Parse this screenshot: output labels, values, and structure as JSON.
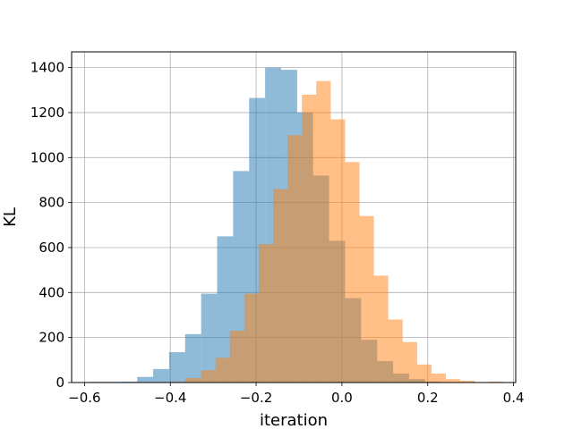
{
  "chart_data": {
    "type": "histogram",
    "title": "",
    "xlabel": "iteration",
    "ylabel": "KL",
    "xlim": [
      -0.63,
      0.405
    ],
    "ylim": [
      0,
      1470
    ],
    "xticks": [
      -0.6,
      -0.4,
      -0.2,
      0.0,
      0.2,
      0.4
    ],
    "xtick_labels": [
      "−0.6",
      "−0.4",
      "−0.2",
      "0.0",
      "0.2",
      "0.4"
    ],
    "yticks": [
      0,
      200,
      400,
      600,
      800,
      1000,
      1200,
      1400
    ],
    "ytick_labels": [
      "0",
      "200",
      "400",
      "600",
      "800",
      "1000",
      "1200",
      "1400"
    ],
    "grid": true,
    "series": [
      {
        "color": "#1f77b4",
        "alpha": 0.5,
        "bins": [
          {
            "x0": -0.5891,
            "x1": -0.5518,
            "value": 3
          },
          {
            "x0": -0.5518,
            "x1": -0.5145,
            "value": 3
          },
          {
            "x0": -0.5145,
            "x1": -0.4772,
            "value": 4
          },
          {
            "x0": -0.4772,
            "x1": -0.44,
            "value": 25
          },
          {
            "x0": -0.44,
            "x1": -0.4027,
            "value": 60
          },
          {
            "x0": -0.4027,
            "x1": -0.3654,
            "value": 135
          },
          {
            "x0": -0.3654,
            "x1": -0.3281,
            "value": 215
          },
          {
            "x0": -0.3281,
            "x1": -0.2908,
            "value": 395
          },
          {
            "x0": -0.2908,
            "x1": -0.2536,
            "value": 650
          },
          {
            "x0": -0.2536,
            "x1": -0.2163,
            "value": 940
          },
          {
            "x0": -0.2163,
            "x1": -0.179,
            "value": 1265
          },
          {
            "x0": -0.179,
            "x1": -0.1417,
            "value": 1400
          },
          {
            "x0": -0.1417,
            "x1": -0.1044,
            "value": 1390
          },
          {
            "x0": -0.1044,
            "x1": -0.0672,
            "value": 1200
          },
          {
            "x0": -0.0672,
            "x1": -0.0299,
            "value": 920
          },
          {
            "x0": -0.0299,
            "x1": 0.0074,
            "value": 630
          },
          {
            "x0": 0.0074,
            "x1": 0.0447,
            "value": 375
          },
          {
            "x0": 0.0447,
            "x1": 0.082,
            "value": 190
          },
          {
            "x0": 0.082,
            "x1": 0.1192,
            "value": 95
          },
          {
            "x0": 0.1192,
            "x1": 0.1565,
            "value": 40
          },
          {
            "x0": 0.1565,
            "x1": 0.1938,
            "value": 15
          },
          {
            "x0": 0.1938,
            "x1": 0.2311,
            "value": 4
          }
        ]
      },
      {
        "color": "#ff7f0e",
        "alpha": 0.5,
        "bins": [
          {
            "x0": -0.4027,
            "x1": -0.3654,
            "value": 3
          },
          {
            "x0": -0.3654,
            "x1": -0.3281,
            "value": 20
          },
          {
            "x0": -0.3281,
            "x1": -0.2946,
            "value": 55
          },
          {
            "x0": -0.2946,
            "x1": -0.261,
            "value": 110
          },
          {
            "x0": -0.261,
            "x1": -0.2275,
            "value": 230
          },
          {
            "x0": -0.2275,
            "x1": -0.194,
            "value": 395
          },
          {
            "x0": -0.194,
            "x1": -0.1604,
            "value": 615
          },
          {
            "x0": -0.1604,
            "x1": -0.1269,
            "value": 860
          },
          {
            "x0": -0.1269,
            "x1": -0.0933,
            "value": 1100
          },
          {
            "x0": -0.0933,
            "x1": -0.0598,
            "value": 1280
          },
          {
            "x0": -0.0598,
            "x1": -0.0262,
            "value": 1340
          },
          {
            "x0": -0.0262,
            "x1": 0.0074,
            "value": 1170
          },
          {
            "x0": 0.0074,
            "x1": 0.0409,
            "value": 980
          },
          {
            "x0": 0.0409,
            "x1": 0.0745,
            "value": 740
          },
          {
            "x0": 0.0745,
            "x1": 0.108,
            "value": 475
          },
          {
            "x0": 0.108,
            "x1": 0.1416,
            "value": 280
          },
          {
            "x0": 0.1416,
            "x1": 0.1751,
            "value": 180
          },
          {
            "x0": 0.1751,
            "x1": 0.2087,
            "value": 80
          },
          {
            "x0": 0.2087,
            "x1": 0.2422,
            "value": 40
          },
          {
            "x0": 0.2422,
            "x1": 0.2757,
            "value": 15
          },
          {
            "x0": 0.2757,
            "x1": 0.3093,
            "value": 8
          },
          {
            "x0": 0.3093,
            "x1": 0.3428,
            "value": 2
          },
          {
            "x0": 0.3428,
            "x1": 0.3764,
            "value": 4
          }
        ]
      }
    ]
  }
}
